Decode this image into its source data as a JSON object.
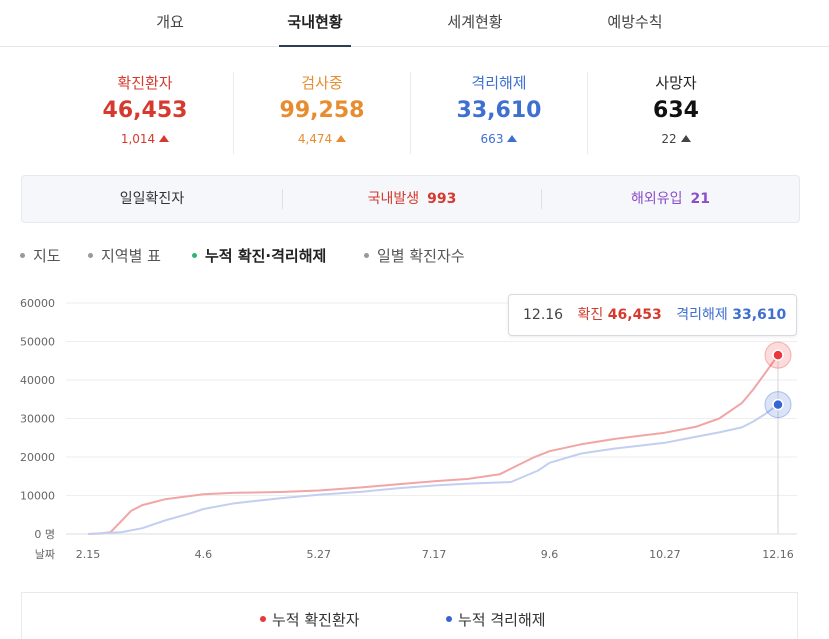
{
  "tabs": [
    {
      "label": "개요",
      "active": false
    },
    {
      "label": "국내현황",
      "active": true
    },
    {
      "label": "세계현황",
      "active": false
    },
    {
      "label": "예방수칙",
      "active": false
    }
  ],
  "stats": [
    {
      "label": "확진환자",
      "value": "46,453",
      "delta": "1,014",
      "color": "#d63a2f"
    },
    {
      "label": "검사중",
      "value": "99,258",
      "delta": "4,474",
      "color": "#e88c2f"
    },
    {
      "label": "격리해제",
      "value": "33,610",
      "delta": "663",
      "color": "#3e6fd1"
    },
    {
      "label": "사망자",
      "value": "634",
      "delta": "22",
      "color": "#222222"
    }
  ],
  "daily": {
    "label": "일일확진자",
    "domestic_label": "국내발생",
    "domestic_value": "993",
    "overseas_label": "해외유입",
    "overseas_value": "21"
  },
  "subtabs": [
    {
      "label": "지도",
      "active": false
    },
    {
      "label": "지역별 표",
      "active": false
    },
    {
      "label": "누적 확진·격리해제",
      "active": true
    },
    {
      "label": "일별 확진자수",
      "active": false
    }
  ],
  "tooltip": {
    "date": "12.16",
    "confirmed_label": "확진",
    "confirmed_value": "46,453",
    "released_label": "격리해제",
    "released_value": "33,610"
  },
  "chart_data": {
    "type": "line",
    "xlabel": "날짜",
    "x_ticks": [
      "2.15",
      "4.6",
      "5.27",
      "7.17",
      "9.6",
      "10.27",
      "12.16"
    ],
    "y_ticks": [
      0,
      10000,
      20000,
      30000,
      40000,
      50000,
      60000
    ],
    "y_zero_label": "0 명",
    "ylim": [
      0,
      60000
    ],
    "grid": true,
    "legend_position": "bottom",
    "series": [
      {
        "name": "누적 확진환자",
        "color": "#f2a5a5",
        "marker_color": "#e8383d",
        "x": [
          "2.15",
          "2.20",
          "2.25",
          "3.1",
          "3.5",
          "3.10",
          "3.20",
          "4.6",
          "4.20",
          "5.10",
          "5.27",
          "6.15",
          "7.1",
          "7.17",
          "8.1",
          "8.15",
          "8.20",
          "8.30",
          "9.6",
          "9.20",
          "10.5",
          "10.27",
          "11.10",
          "11.20",
          "11.30",
          "12.5",
          "12.10",
          "12.16"
        ],
        "values": [
          0,
          100,
          500,
          3500,
          6000,
          7500,
          9000,
          10300,
          10700,
          10900,
          11300,
          12100,
          12900,
          13700,
          14300,
          15500,
          17000,
          19900,
          21500,
          23300,
          24700,
          26300,
          27900,
          30000,
          34000,
          37500,
          41500,
          46453
        ]
      },
      {
        "name": "누적 격리해제",
        "color": "#c3cff0",
        "marker_color": "#3565d4",
        "x": [
          "2.15",
          "3.1",
          "3.10",
          "3.20",
          "4.1",
          "4.6",
          "4.20",
          "5.10",
          "5.27",
          "6.15",
          "7.1",
          "7.17",
          "8.1",
          "8.20",
          "9.1",
          "9.6",
          "9.20",
          "10.5",
          "10.27",
          "11.10",
          "11.20",
          "11.30",
          "12.5",
          "12.10",
          "12.16"
        ],
        "values": [
          0,
          500,
          1500,
          3500,
          5500,
          6500,
          8000,
          9300,
          10200,
          11000,
          11900,
          12600,
          13100,
          13500,
          16500,
          18500,
          20900,
          22200,
          23700,
          25300,
          26400,
          27700,
          29200,
          31000,
          33610
        ]
      }
    ]
  },
  "legend": [
    {
      "label": "누적 확진환자",
      "color": "#e8383d"
    },
    {
      "label": "누적 격리해제",
      "color": "#3565d4"
    }
  ]
}
